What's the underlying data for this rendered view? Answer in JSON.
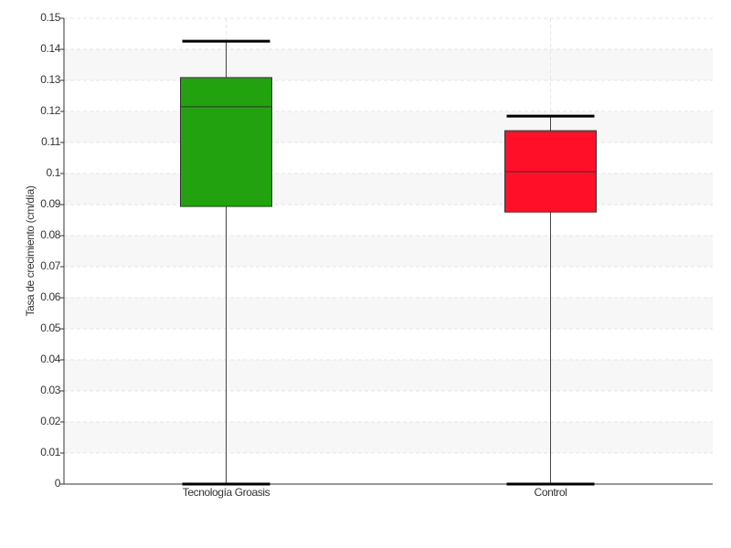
{
  "chart_data": {
    "type": "box",
    "y_label": "Tasa de crecimiento (cm/día)",
    "categories": [
      "Tecnología Groasis",
      "Control"
    ],
    "colors": [
      "#22a20e",
      "#ff1028"
    ],
    "min": [
      0,
      0
    ],
    "q1": [
      0.0894,
      0.0876
    ],
    "median": [
      0.1215,
      0.1006
    ],
    "q3": [
      0.1309,
      0.1138
    ],
    "max": [
      0.1426,
      0.1185
    ],
    "ylim": [
      0,
      0.15
    ],
    "yticks": [
      0,
      0.01,
      0.02,
      0.03,
      0.04,
      0.05,
      0.06,
      0.07,
      0.08,
      0.09,
      0.1,
      0.11,
      0.12,
      0.13,
      0.14,
      0.15
    ],
    "grid": true
  }
}
